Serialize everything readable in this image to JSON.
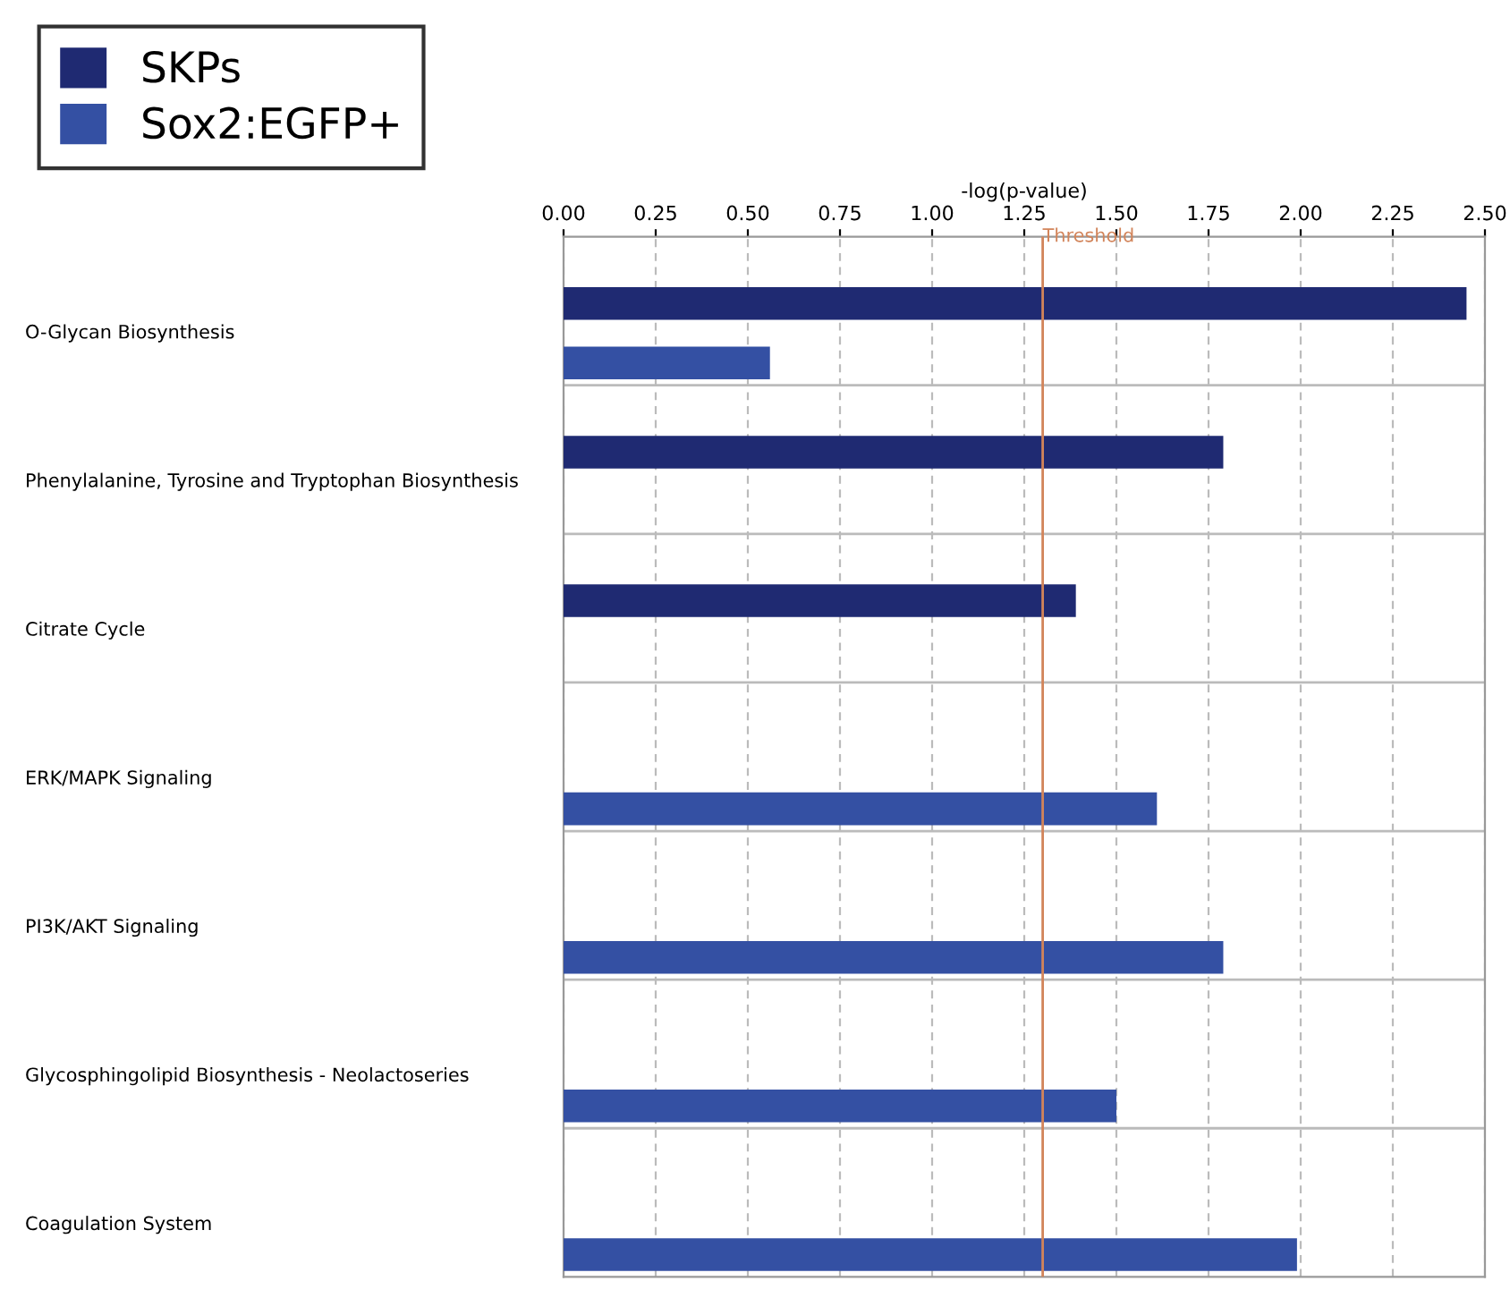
{
  "chart_data": {
    "type": "bar",
    "orientation": "horizontal",
    "xlabel": "-log(p-value)",
    "categories": [
      "O-Glycan Biosynthesis",
      "Phenylalanine, Tyrosine and Tryptophan Biosynthesis",
      "Citrate Cycle",
      "ERK/MAPK Signaling",
      "PI3K/AKT Signaling",
      "Glycosphingolipid Biosynthesis - Neolactoseries",
      "Coagulation System"
    ],
    "series": [
      {
        "name": "SKPs",
        "color": "#1f2a72",
        "values": [
          2.45,
          1.79,
          1.39,
          null,
          null,
          null,
          null
        ]
      },
      {
        "name": "Sox2:EGFP+",
        "color": "#3450a3",
        "values": [
          0.56,
          null,
          null,
          1.61,
          1.79,
          1.5,
          1.99
        ]
      }
    ],
    "xlim": [
      0,
      2.5
    ],
    "xticks": [
      {
        "value": 0,
        "label": "0.00"
      },
      {
        "value": 0.25,
        "label": "0.25"
      },
      {
        "value": 0.5,
        "label": "0.50"
      },
      {
        "value": 0.75,
        "label": "0.75"
      },
      {
        "value": 1,
        "label": "1.00"
      },
      {
        "value": 1.25,
        "label": "1.25"
      },
      {
        "value": 1.5,
        "label": "1.50"
      },
      {
        "value": 1.75,
        "label": "1.75"
      },
      {
        "value": 2,
        "label": "2.00"
      },
      {
        "value": 2.25,
        "label": "2.25"
      },
      {
        "value": 2.5,
        "label": "2.50"
      }
    ],
    "ref_lines": [
      {
        "axis": "x",
        "value": 1.3,
        "label": "Threshold",
        "color": "#d2845a"
      }
    ],
    "grid": "x",
    "legend": "top left"
  }
}
